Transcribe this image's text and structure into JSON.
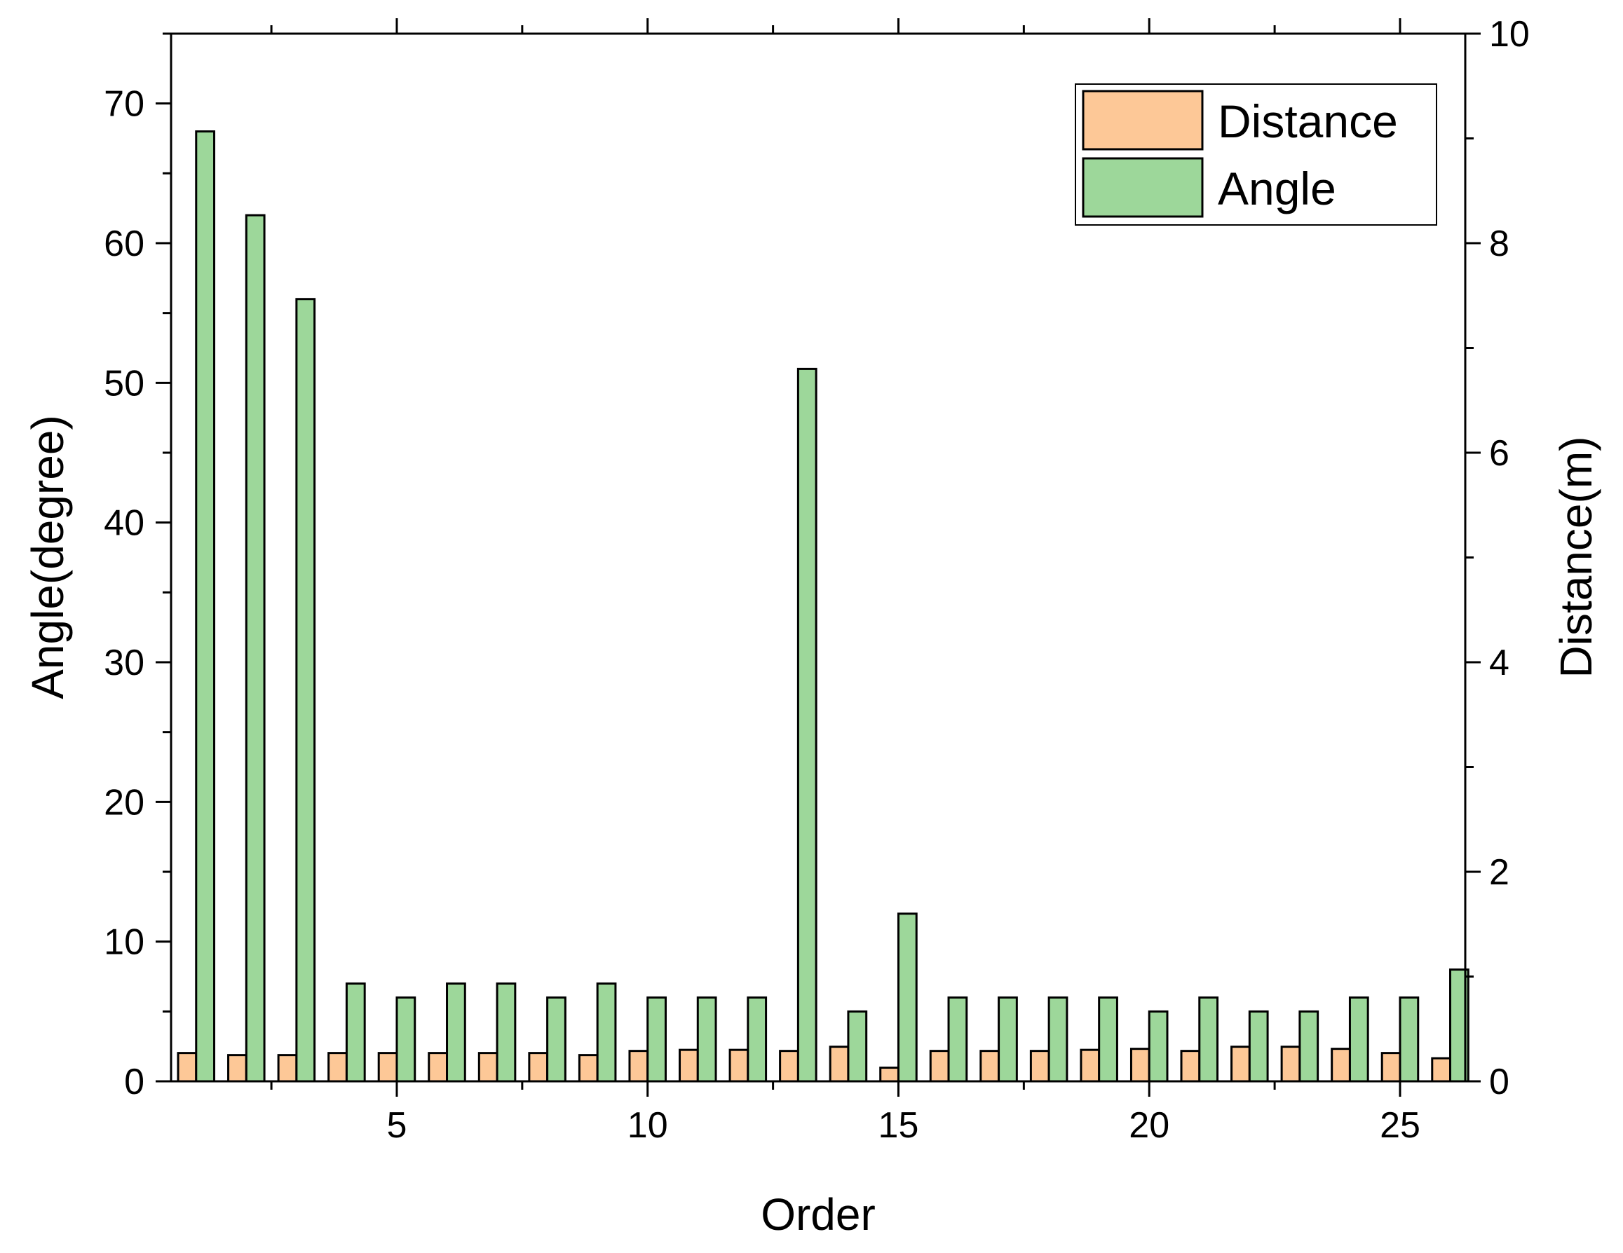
{
  "chart_data": {
    "type": "bar",
    "xlabel": "Order",
    "ylabel_left": "Angle(degree)",
    "ylabel_right": "Distance(m)",
    "x": [
      1,
      2,
      3,
      4,
      5,
      6,
      7,
      8,
      9,
      10,
      11,
      12,
      13,
      14,
      15,
      16,
      17,
      18,
      19,
      20,
      21,
      22,
      23,
      24,
      25,
      26
    ],
    "xlim": [
      0.5,
      26.3
    ],
    "x_ticks": [
      5,
      10,
      15,
      20,
      25
    ],
    "ylim_left": [
      0,
      75
    ],
    "y_ticks_left": [
      0,
      10,
      20,
      30,
      40,
      50,
      60,
      70
    ],
    "ylim_right": [
      0,
      10
    ],
    "y_ticks_right": [
      0,
      2,
      4,
      6,
      8,
      10
    ],
    "series": [
      {
        "name": "Distance",
        "axis": "right",
        "color": "#FDC897",
        "values": [
          0.27,
          0.25,
          0.25,
          0.27,
          0.27,
          0.27,
          0.27,
          0.27,
          0.25,
          0.29,
          0.3,
          0.3,
          0.29,
          0.33,
          0.13,
          0.29,
          0.29,
          0.29,
          0.3,
          0.31,
          0.29,
          0.33,
          0.33,
          0.31,
          0.27,
          0.22
        ]
      },
      {
        "name": "Angle",
        "axis": "left",
        "color": "#9DD79A",
        "values": [
          68,
          62,
          56,
          7,
          6,
          7,
          7,
          6,
          7,
          6,
          6,
          6,
          51,
          5,
          12,
          6,
          6,
          6,
          6,
          5,
          6,
          5,
          5,
          6,
          6,
          8
        ]
      }
    ],
    "legend_position": "top-right",
    "grid": false
  }
}
